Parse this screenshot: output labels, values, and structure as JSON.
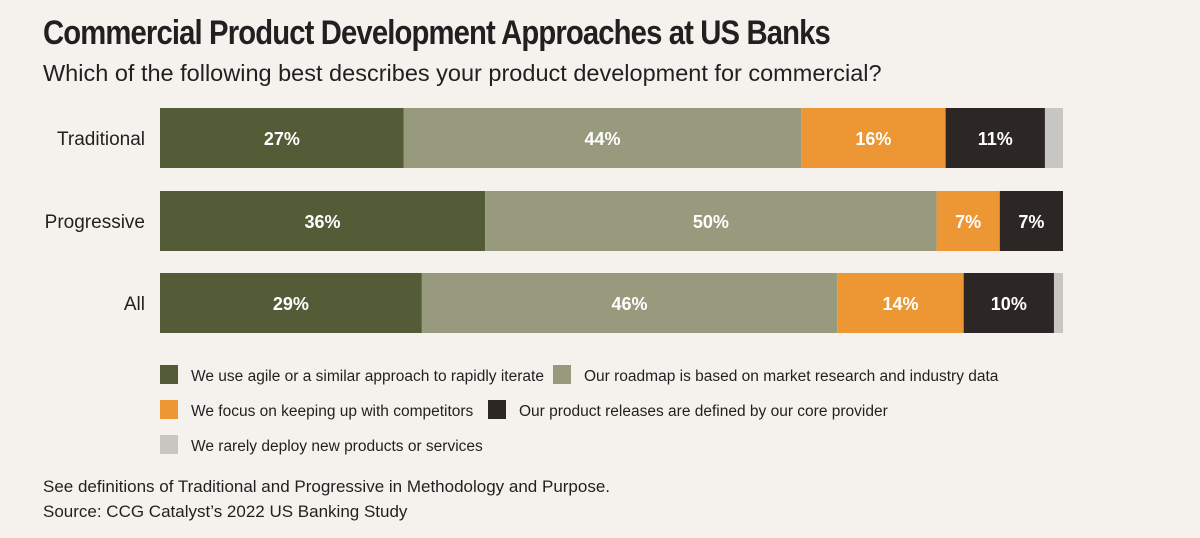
{
  "chart_data": {
    "type": "bar",
    "orientation": "horizontal",
    "stacked": true,
    "title": "Commercial Product Development Approaches at US Banks",
    "subtitle": "Which of the following best describes your product development for commercial?",
    "categories": [
      "Traditional",
      "Progressive",
      "All"
    ],
    "series": [
      {
        "name": "We use agile or a similar approach to rapidly iterate",
        "color": "#535b37",
        "values": [
          27,
          36,
          29
        ],
        "labels": [
          "27%",
          "36%",
          "29%"
        ]
      },
      {
        "name": "Our roadmap is based on market research and industry data",
        "color": "#989a7d",
        "values": [
          44,
          50,
          46
        ],
        "labels": [
          "44%",
          "50%",
          "46%"
        ]
      },
      {
        "name": "We focus on keeping up with competitors",
        "color": "#ed9634",
        "values": [
          16,
          7,
          14
        ],
        "labels": [
          "16%",
          "7%",
          "14%"
        ]
      },
      {
        "name": "Our product releases are defined by our core provider",
        "color": "#2c2624",
        "values": [
          11,
          7,
          10
        ],
        "labels": [
          "11%",
          "7%",
          "10%"
        ]
      },
      {
        "name": "We rarely deploy new products or services",
        "color": "#c8c6c3",
        "values": [
          2,
          0,
          1
        ],
        "labels": [
          "",
          "",
          ""
        ]
      }
    ],
    "xlim": [
      0,
      100
    ],
    "legend": "bottom",
    "grid": false
  },
  "footnotes": {
    "definitions": "See definitions of Traditional and Progressive in Methodology and Purpose.",
    "source": "Source: CCG Catalyst’s 2022 US Banking Study"
  }
}
